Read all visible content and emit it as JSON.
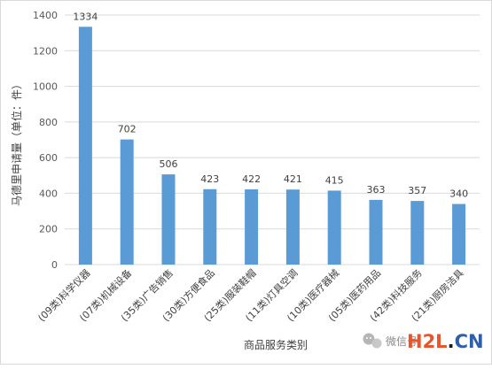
{
  "chart_data": {
    "type": "bar",
    "categories": [
      "(09类)科学仪器",
      "(07类)机械设备",
      "(35类)广告销售",
      "(30类)方便食品",
      "(25类)服装鞋帽",
      "(11类)灯具空调",
      "(10类)医疗器械",
      "(05类)医药用品",
      "(42类)科技服务",
      "(21类)厨房洁具"
    ],
    "values": [
      1334,
      702,
      506,
      423,
      422,
      421,
      415,
      363,
      357,
      340
    ],
    "xlabel": "商品服务类别",
    "ylabel": "马德里申请量（单位：件）",
    "ylim": [
      0,
      1400
    ],
    "yticks": [
      0,
      200,
      400,
      600,
      800,
      1000,
      1200,
      1400
    ],
    "grid": true,
    "legend": "none",
    "bar_color": "#5b9bd5",
    "grid_color": "#d9d9d9"
  },
  "watermark": {
    "wechat_text": "微信号",
    "brand_left": "H2L",
    "brand_dot": ".",
    "brand_right": "CN"
  }
}
